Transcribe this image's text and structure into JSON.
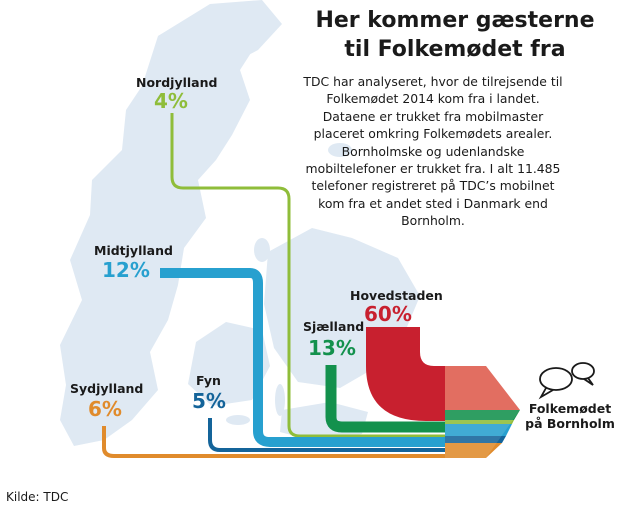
{
  "title_line1": "Her kommer gæsterne",
  "title_line2": "til Folkemødet fra",
  "description": "TDC har analyseret, hvor de tilrejsende til Folkemødet 2014 kom fra i landet. Dataene er trukket fra mobilmaster placeret omkring Folkemødets arealer. Bornholmske og udenlandske mobiltelefoner er trukket fra. I alt 11.485 telefoner registreret på TDC’s mobilnet kom fra et andet sted i Danmark end Bornholm.",
  "regions": [
    {
      "name": "Nordjylland",
      "value": "4%",
      "color": "#8fbd3a"
    },
    {
      "name": "Midtjylland",
      "value": "12%",
      "color": "#27a0cf"
    },
    {
      "name": "Sydjylland",
      "value": "6%",
      "color": "#e08b2c"
    },
    {
      "name": "Fyn",
      "value": "5%",
      "color": "#14649a"
    },
    {
      "name": "Sjælland",
      "value": "13%",
      "color": "#13914d"
    },
    {
      "name": "Hovedstaden",
      "value": "60%",
      "color": "#c8202f"
    }
  ],
  "destination_line1": "Folkemødet",
  "destination_line2": "på Bornholm",
  "source": "Kilde: TDC",
  "icons": [
    "speech-bubbles-icon",
    "arrow-head-icon"
  ]
}
